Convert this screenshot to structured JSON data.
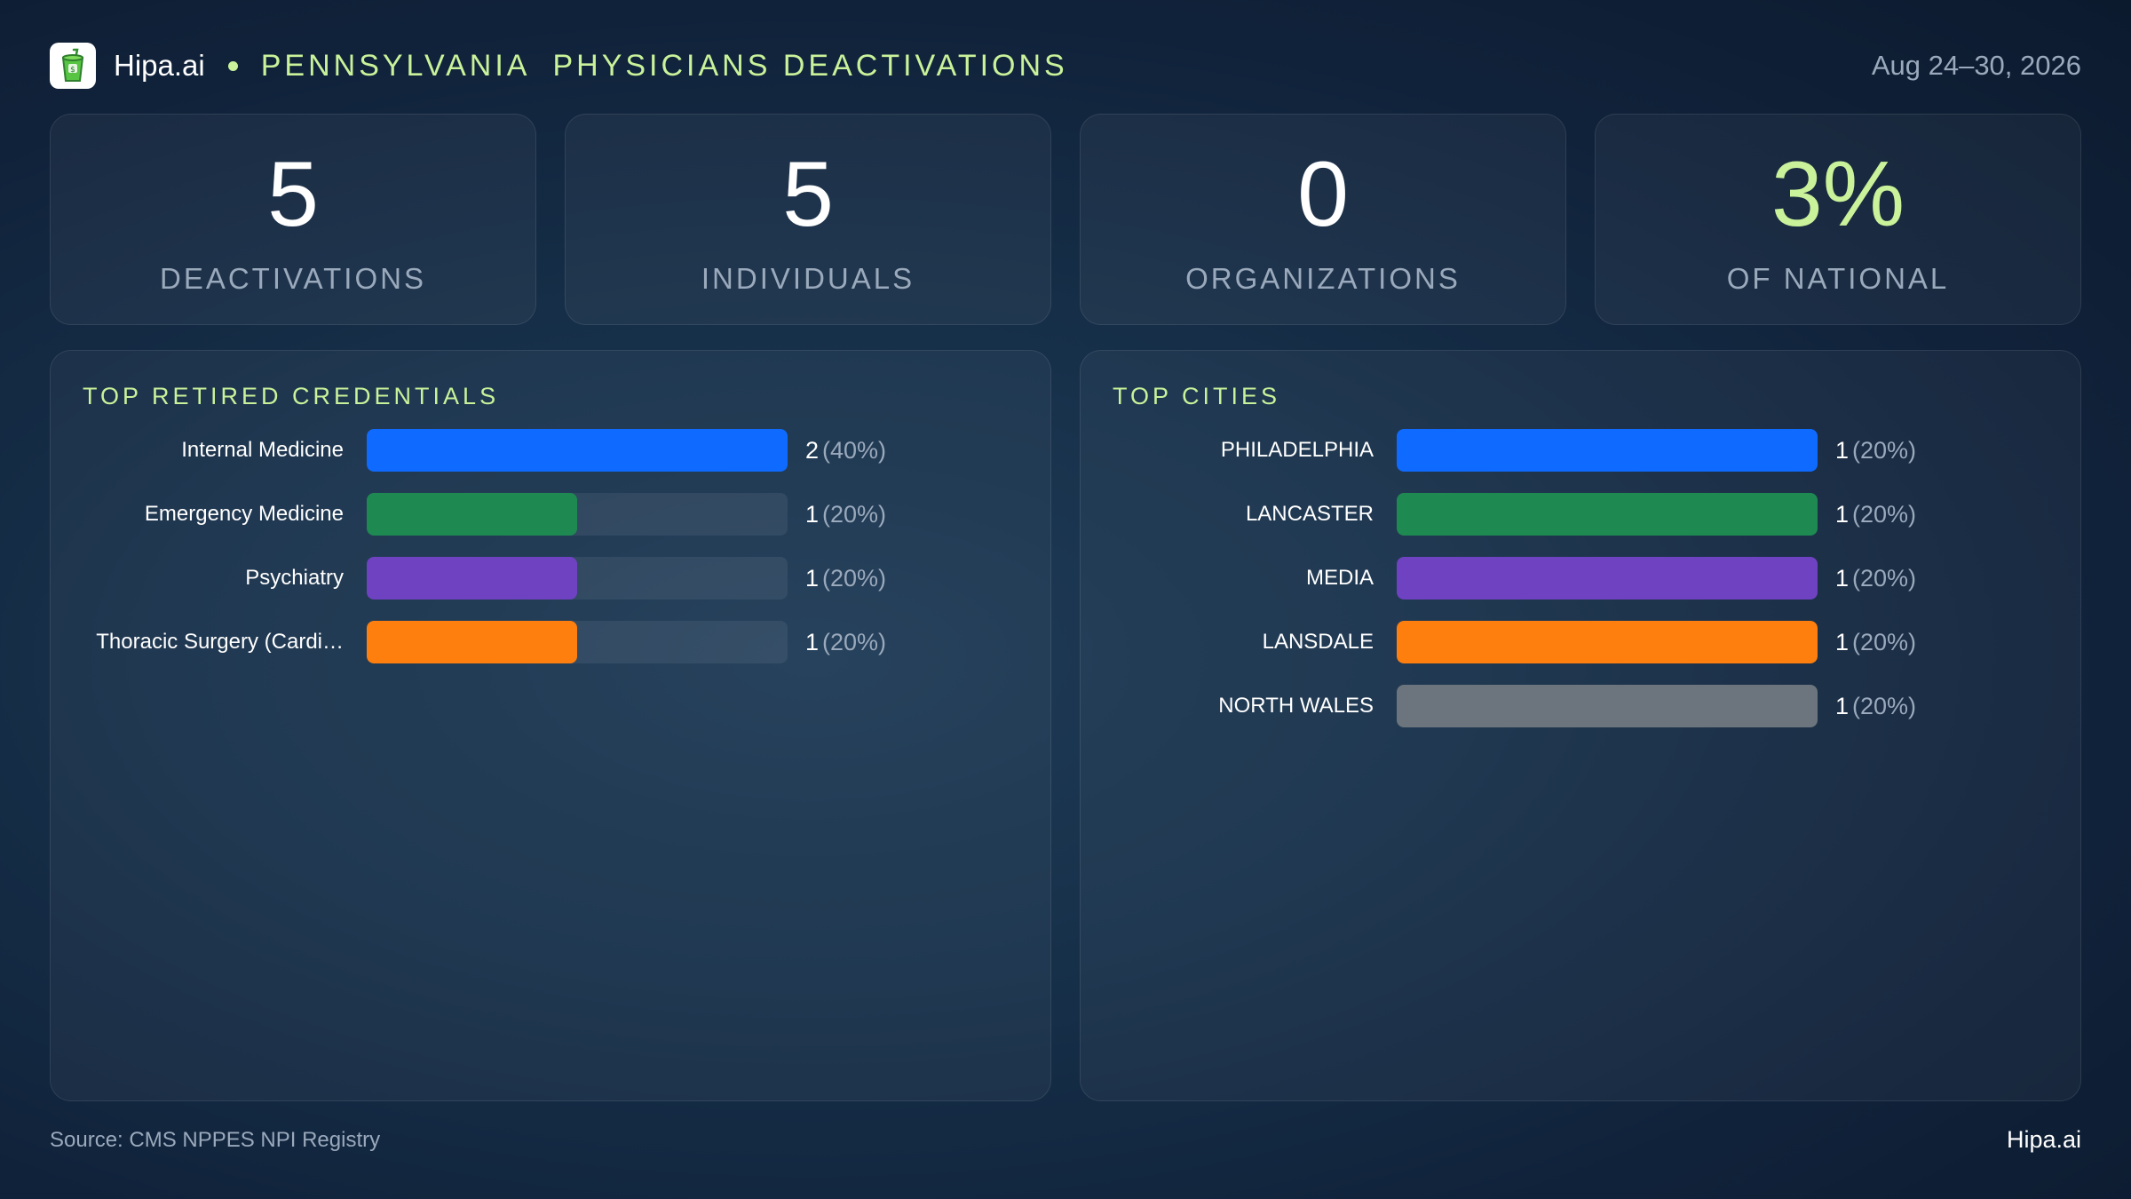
{
  "header": {
    "brand": "Hipa.ai",
    "title": "PENNSYLVANIA  PHYSICIANS DEACTIVATIONS",
    "date_range": "Aug 24–30, 2026",
    "logo_icon": "cup-icon"
  },
  "kpis": [
    {
      "value": "5",
      "label": "DEACTIVATIONS"
    },
    {
      "value": "5",
      "label": "INDIVIDUALS"
    },
    {
      "value": "0",
      "label": "ORGANIZATIONS"
    },
    {
      "value": "3%",
      "label": "OF NATIONAL",
      "accent": "#c9f29a"
    }
  ],
  "chart_data": [
    {
      "type": "bar",
      "orientation": "horizontal",
      "title": "TOP RETIRED CREDENTIALS",
      "categories": [
        "Internal Medicine",
        "Emergency Medicine",
        "Psychiatry",
        "Thoracic Surgery (Cardi…"
      ],
      "values": [
        2,
        1,
        1,
        1
      ],
      "value_labels": [
        "2",
        "1",
        "1",
        "1"
      ],
      "percent_labels": [
        "(40%)",
        "(20%)",
        "(20%)",
        "(20%)"
      ],
      "colors": [
        "#0f6bff",
        "#1e8a52",
        "#6f42c1",
        "#ff7f0e"
      ],
      "xlim": [
        0,
        2
      ]
    },
    {
      "type": "bar",
      "orientation": "horizontal",
      "title": "TOP CITIES",
      "categories": [
        "PHILADELPHIA",
        "LANCASTER",
        "MEDIA",
        "LANSDALE",
        "NORTH WALES"
      ],
      "values": [
        1,
        1,
        1,
        1,
        1
      ],
      "value_labels": [
        "1",
        "1",
        "1",
        "1",
        "1"
      ],
      "percent_labels": [
        "(20%)",
        "(20%)",
        "(20%)",
        "(20%)",
        "(20%)"
      ],
      "colors": [
        "#0f6bff",
        "#1e8a52",
        "#6f42c1",
        "#ff7f0e",
        "#6c757d"
      ],
      "xlim": [
        0,
        1
      ]
    }
  ],
  "footer": {
    "source": "Source: CMS NPPES NPI Registry",
    "brand": "Hipa.ai"
  }
}
